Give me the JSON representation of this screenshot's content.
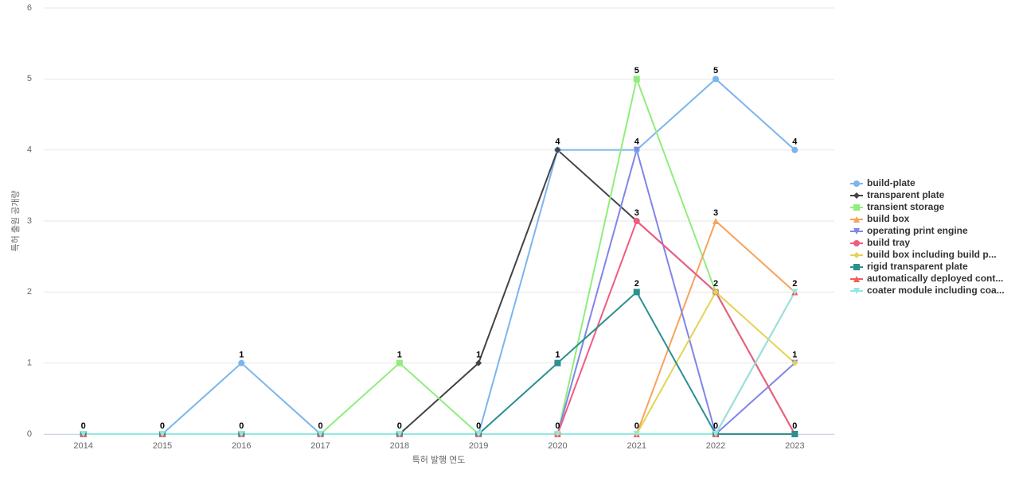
{
  "chart_data": {
    "type": "line",
    "x_axis_title": "특허 발행 연도",
    "y_axis_title": "특허 출원 공개량",
    "categories": [
      "2014",
      "2015",
      "2016",
      "2017",
      "2018",
      "2019",
      "2020",
      "2021",
      "2022",
      "2023"
    ],
    "ylim": [
      0,
      6
    ],
    "yticks": [
      0,
      1,
      2,
      3,
      4,
      5,
      6
    ],
    "grid": true,
    "legend": "right",
    "series": [
      {
        "name": "build-plate",
        "color": "#7cb5ec",
        "values": [
          0,
          0,
          1,
          0,
          0,
          0,
          4,
          4,
          5,
          4
        ]
      },
      {
        "name": "transparent plate",
        "color": "#434348",
        "values": [
          0,
          0,
          0,
          0,
          0,
          1,
          4,
          3,
          2,
          0
        ]
      },
      {
        "name": "transient storage",
        "color": "#90ed7d",
        "values": [
          0,
          0,
          0,
          0,
          1,
          0,
          0,
          5,
          2,
          0
        ]
      },
      {
        "name": "build box",
        "color": "#f7a35c",
        "values": [
          0,
          0,
          0,
          0,
          0,
          0,
          0,
          0,
          3,
          2
        ]
      },
      {
        "name": "operating print engine",
        "color": "#8085e9",
        "values": [
          0,
          0,
          0,
          0,
          0,
          0,
          0,
          4,
          0,
          1
        ]
      },
      {
        "name": "build tray",
        "color": "#f15c80",
        "values": [
          0,
          0,
          0,
          0,
          0,
          0,
          0,
          3,
          2,
          0
        ]
      },
      {
        "name": "build box including build p...",
        "color": "#e4d354",
        "values": [
          0,
          0,
          0,
          0,
          0,
          0,
          0,
          0,
          2,
          1
        ]
      },
      {
        "name": "rigid transparent plate",
        "color": "#2b908f",
        "values": [
          0,
          0,
          0,
          0,
          0,
          0,
          1,
          2,
          0,
          0
        ]
      },
      {
        "name": "automatically deployed cont...",
        "color": "#f45b5b",
        "values": [
          0,
          0,
          0,
          0,
          0,
          0,
          0,
          0,
          0,
          2
        ]
      },
      {
        "name": "coater module including coa...",
        "color": "#91e8e1",
        "values": [
          0,
          0,
          0,
          0,
          0,
          0,
          0,
          0,
          0,
          2
        ]
      }
    ]
  }
}
